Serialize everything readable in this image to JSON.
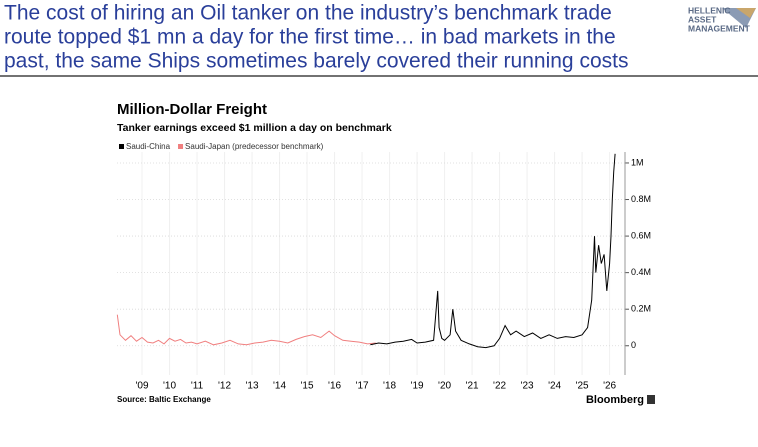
{
  "slide": {
    "title_lines": [
      "The cost of hiring an Oil tanker on the industry’s benchmark trade",
      "route topped $1 mn a day for the first time… in bad markets in the",
      "past, the same Ships sometimes barely covered their running costs"
    ],
    "logo_lines": [
      "HELLENIC",
      "ASSET",
      "MANAGEMENT"
    ]
  },
  "chart_data": {
    "type": "line",
    "title": "Million-Dollar Freight",
    "subtitle": "Tanker earnings exceed $1 million a day on benchmark",
    "source": "Source: Baltic Exchange",
    "brand": "Bloomberg",
    "xlim": [
      2008.09,
      2026.56
    ],
    "ylim": [
      -160000,
      1060000
    ],
    "xticks": [
      {
        "value": 2009,
        "label": "'09"
      },
      {
        "value": 2010,
        "label": "'10"
      },
      {
        "value": 2011,
        "label": "'11"
      },
      {
        "value": 2012,
        "label": "'12"
      },
      {
        "value": 2013,
        "label": "'13"
      },
      {
        "value": 2014,
        "label": "'14"
      },
      {
        "value": 2015,
        "label": "'15"
      },
      {
        "value": 2016,
        "label": "'16"
      },
      {
        "value": 2017,
        "label": "'17"
      },
      {
        "value": 2018,
        "label": "'18"
      },
      {
        "value": 2019,
        "label": "'19"
      },
      {
        "value": 2020,
        "label": "'20"
      },
      {
        "value": 2021,
        "label": "'21"
      },
      {
        "value": 2022,
        "label": "'22"
      },
      {
        "value": 2023,
        "label": "'23"
      },
      {
        "value": 2024,
        "label": "'24"
      },
      {
        "value": 2025,
        "label": "'25"
      },
      {
        "value": 2026,
        "label": "'26"
      }
    ],
    "yticks": [
      0,
      {
        "value": 200000,
        "label": "0.2M"
      },
      {
        "value": 400000,
        "label": "0.4M"
      },
      {
        "value": 600000,
        "label": "0.6M"
      },
      {
        "value": 800000,
        "label": "0.8M"
      },
      {
        "value": 1000000,
        "label": "1M"
      }
    ],
    "grid": true,
    "series": [
      {
        "name": "Saudi-China",
        "color": "#000000",
        "x": [
          2017.3,
          2017.6,
          2017.9,
          2018.2,
          2018.5,
          2018.8,
          2019.0,
          2019.3,
          2019.6,
          2019.75,
          2019.8,
          2019.9,
          2020.0,
          2020.2,
          2020.3,
          2020.4,
          2020.6,
          2020.9,
          2021.2,
          2021.5,
          2021.8,
          2022.0,
          2022.2,
          2022.4,
          2022.6,
          2022.9,
          2023.2,
          2023.5,
          2023.8,
          2024.1,
          2024.4,
          2024.7,
          2025.0,
          2025.2,
          2025.35,
          2025.45,
          2025.5,
          2025.6,
          2025.7,
          2025.8,
          2025.9,
          2026.0,
          2026.05,
          2026.1,
          2026.15,
          2026.2
        ],
        "values": [
          5000,
          15000,
          10000,
          20000,
          25000,
          35000,
          15000,
          20000,
          30000,
          300000,
          100000,
          40000,
          30000,
          60000,
          200000,
          80000,
          30000,
          10000,
          -5000,
          -10000,
          0,
          40000,
          110000,
          60000,
          80000,
          50000,
          70000,
          40000,
          60000,
          40000,
          50000,
          45000,
          60000,
          100000,
          250000,
          600000,
          400000,
          550000,
          450000,
          500000,
          300000,
          450000,
          600000,
          800000,
          950000,
          1050000
        ]
      },
      {
        "name": "Saudi-Japan (predecessor benchmark)",
        "color": "#f07f7f",
        "x": [
          2008.1,
          2008.2,
          2008.4,
          2008.6,
          2008.8,
          2009.0,
          2009.2,
          2009.4,
          2009.6,
          2009.8,
          2010.0,
          2010.2,
          2010.4,
          2010.6,
          2010.8,
          2011.0,
          2011.3,
          2011.6,
          2011.9,
          2012.2,
          2012.5,
          2012.8,
          2013.1,
          2013.4,
          2013.7,
          2014.0,
          2014.3,
          2014.6,
          2014.9,
          2015.2,
          2015.5,
          2015.8,
          2016.0,
          2016.3,
          2016.6,
          2016.9,
          2017.2,
          2017.5
        ],
        "values": [
          170000,
          60000,
          30000,
          55000,
          25000,
          45000,
          20000,
          15000,
          30000,
          10000,
          40000,
          25000,
          35000,
          15000,
          20000,
          10000,
          25000,
          5000,
          15000,
          30000,
          10000,
          5000,
          15000,
          20000,
          30000,
          25000,
          15000,
          35000,
          50000,
          60000,
          45000,
          80000,
          55000,
          30000,
          25000,
          20000,
          10000,
          15000
        ]
      }
    ]
  }
}
